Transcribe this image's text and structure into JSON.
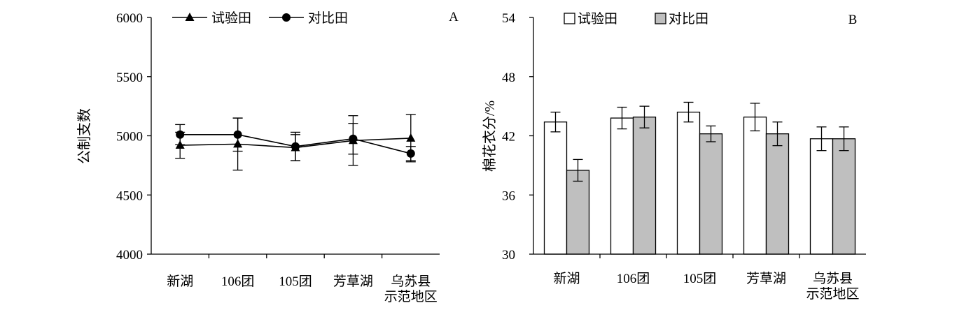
{
  "chart_data": [
    {
      "panel": "A",
      "type": "line",
      "ylabel": "公制支数",
      "ylim": [
        4000,
        6000
      ],
      "yticks": [
        4000,
        4500,
        5000,
        5500,
        6000
      ],
      "categories": [
        "新湖",
        "106团",
        "105团",
        "芳草湖",
        "乌苏县\n示范地区"
      ],
      "legend_position": "top-left",
      "series": [
        {
          "name": "试验田",
          "marker": "triangle",
          "values": [
            4920,
            4930,
            4900,
            4960,
            4980
          ],
          "errors": [
            110,
            220,
            110,
            210,
            200
          ]
        },
        {
          "name": "对比田",
          "marker": "circle",
          "values": [
            5010,
            5010,
            4910,
            4975,
            4850
          ],
          "errors": [
            85,
            140,
            120,
            130,
            60
          ]
        }
      ]
    },
    {
      "panel": "B",
      "type": "bar",
      "ylabel": "棉花衣分/%",
      "ylim": [
        30,
        54
      ],
      "yticks": [
        30,
        36,
        42,
        48,
        54
      ],
      "categories": [
        "新湖",
        "106团",
        "105团",
        "芳草湖",
        "乌苏县\n示范地区"
      ],
      "legend_position": "top-left",
      "series": [
        {
          "name": "试验田",
          "color": "#ffffff",
          "values": [
            43.4,
            43.8,
            44.4,
            43.9,
            41.7
          ],
          "errors": [
            1.0,
            1.1,
            1.0,
            1.4,
            1.2
          ]
        },
        {
          "name": "对比田",
          "color": "#bfbfbf",
          "values": [
            38.5,
            43.9,
            42.2,
            42.2,
            41.7
          ],
          "errors": [
            1.1,
            1.1,
            0.8,
            1.2,
            1.2
          ]
        }
      ]
    }
  ]
}
